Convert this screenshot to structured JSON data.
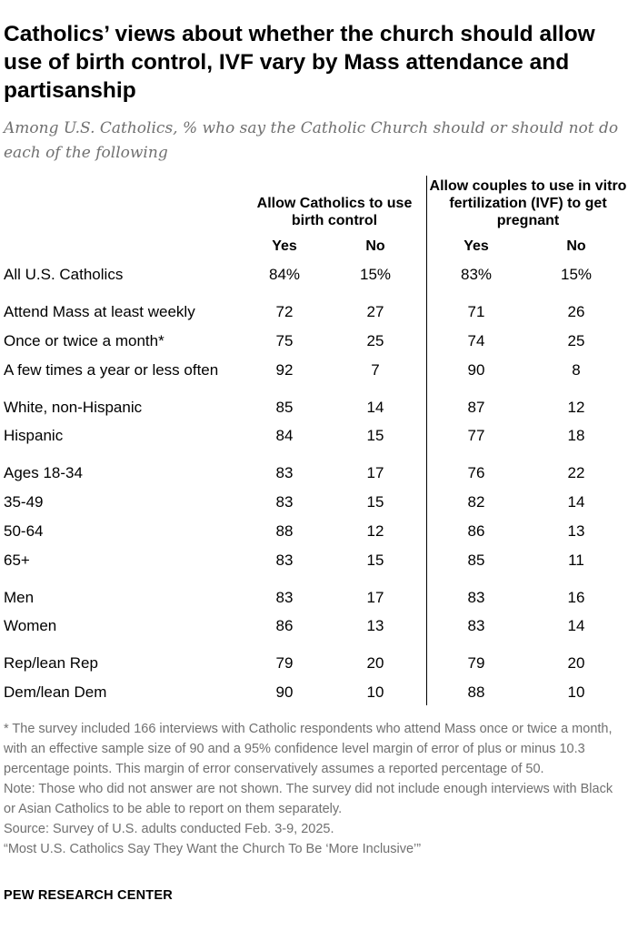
{
  "header": {
    "title": "Catholics’ views about whether the church should allow use of birth control, IVF vary by Mass attendance and partisanship",
    "subtitle": "Among U.S. Catholics, % who say the Catholic Church should or should not do each of the following"
  },
  "chart_data": {
    "type": "table",
    "title": "Catholics’ views about whether the church should allow use of birth control, IVF vary by Mass attendance and partisanship",
    "subtitle": "Among U.S. Catholics, % who say the Catholic Church should or should not do each of the following",
    "column_groups": [
      {
        "name": "Allow Catholics to use birth control",
        "columns": [
          "Yes",
          "No"
        ]
      },
      {
        "name": "Allow couples to use in vitro fertilization (IVF) to get pregnant",
        "columns": [
          "Yes",
          "No"
        ]
      }
    ],
    "rows": [
      {
        "label": "All U.S. Catholics",
        "values": [
          "84%",
          "15%",
          "83%",
          "15%"
        ]
      },
      {
        "label": "Attend Mass at least weekly",
        "values": [
          "72",
          "27",
          "71",
          "26"
        ]
      },
      {
        "label": "Once or twice a month*",
        "values": [
          "75",
          "25",
          "74",
          "25"
        ]
      },
      {
        "label": "A few times a year or less often",
        "values": [
          "92",
          "7",
          "90",
          "8"
        ]
      },
      {
        "label": "White, non-Hispanic",
        "values": [
          "85",
          "14",
          "87",
          "12"
        ]
      },
      {
        "label": "Hispanic",
        "values": [
          "84",
          "15",
          "77",
          "18"
        ]
      },
      {
        "label": "Ages 18-34",
        "values": [
          "83",
          "17",
          "76",
          "22"
        ]
      },
      {
        "label": "35-49",
        "values": [
          "83",
          "15",
          "82",
          "14"
        ]
      },
      {
        "label": "50-64",
        "values": [
          "88",
          "12",
          "86",
          "13"
        ]
      },
      {
        "label": "65+",
        "values": [
          "83",
          "15",
          "85",
          "11"
        ]
      },
      {
        "label": "Men",
        "values": [
          "83",
          "17",
          "83",
          "16"
        ]
      },
      {
        "label": "Women",
        "values": [
          "86",
          "13",
          "83",
          "14"
        ]
      },
      {
        "label": "Rep/lean Rep",
        "values": [
          "79",
          "20",
          "79",
          "20"
        ]
      },
      {
        "label": "Dem/lean Dem",
        "values": [
          "90",
          "10",
          "88",
          "10"
        ]
      }
    ]
  },
  "notes": [
    "* The survey included 166 interviews with Catholic respondents who attend Mass once or twice a month, with an effective sample size of 90 and a 95% confidence level margin of error of plus or minus 10.3 percentage points. This margin of error conservatively assumes a reported percentage of 50.",
    "Note: Those who did not answer are not shown. The survey did not include enough interviews with Black or Asian Catholics to be able to report on them separately.",
    "Source: Survey of U.S. adults conducted Feb. 3-9, 2025.",
    "“Most U.S. Catholics Say They Want the Church To Be ‘More Inclusive’”"
  ],
  "footer": {
    "brand": "PEW RESEARCH CENTER"
  }
}
